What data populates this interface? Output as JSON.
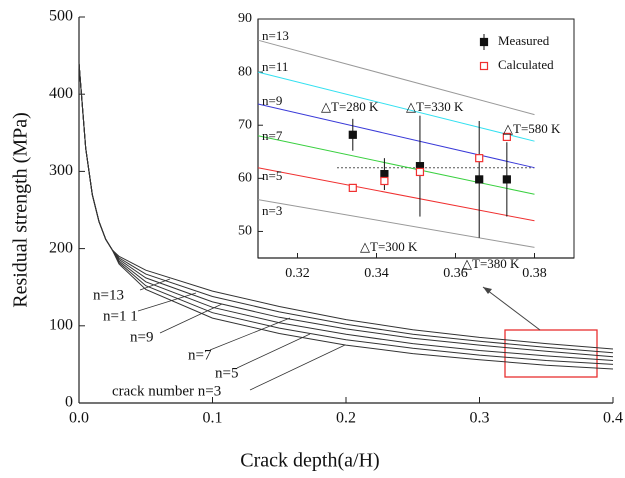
{
  "chart_data": [
    {
      "type": "line",
      "x_label": "Crack depth(a/H)",
      "y_label": "Residual strength (MPa)",
      "x": [
        0,
        0.005,
        0.01,
        0.015,
        0.02,
        0.025,
        0.03,
        0.05,
        0.1,
        0.15,
        0.2,
        0.25,
        0.3,
        0.35,
        0.4
      ],
      "series": [
        {
          "color": "#333333",
          "values": [
            440,
            330,
            270,
            235,
            212,
            198,
            190,
            172,
            145,
            125,
            108,
            95,
            85,
            77,
            70
          ]
        },
        {
          "color": "#333333",
          "values": [
            440,
            330,
            270,
            235,
            212,
            198,
            188,
            167,
            138,
            118,
            102,
            89,
            80,
            72,
            65
          ]
        },
        {
          "color": "#333333",
          "values": [
            440,
            330,
            270,
            235,
            212,
            198,
            186,
            162,
            131,
            111,
            96,
            84,
            75,
            67,
            60
          ]
        },
        {
          "color": "#333333",
          "values": [
            440,
            330,
            270,
            235,
            212,
            198,
            184,
            157,
            124,
            104,
            89,
            77,
            68,
            61,
            55
          ]
        },
        {
          "color": "#333333",
          "values": [
            440,
            330,
            270,
            235,
            212,
            198,
            182,
            152,
            117,
            97,
            82,
            71,
            62,
            55,
            50
          ]
        },
        {
          "color": "#333333",
          "values": [
            440,
            330,
            270,
            235,
            212,
            198,
            180,
            147,
            110,
            90,
            75,
            64,
            56,
            49,
            44
          ]
        }
      ],
      "annotations": [
        "n=13",
        "n=1 1",
        "n=9",
        "n=7",
        "n=5",
        "crack number n=3"
      ],
      "xlim": [
        0,
        0.4
      ],
      "xticks": [
        {
          "value": 0,
          "label": "0.0"
        },
        0.1,
        0.2,
        0.3,
        0.4
      ],
      "ylim": [
        0,
        500
      ],
      "yticks": [
        0,
        100,
        200,
        300,
        400,
        500
      ]
    },
    {
      "type": "line",
      "series": [
        {
          "color": "#999999",
          "x": [
            0.31,
            0.38
          ],
          "values": [
            86,
            72
          ]
        },
        {
          "color": "#33e0f0",
          "x": [
            0.31,
            0.38
          ],
          "values": [
            80,
            67
          ]
        },
        {
          "color": "#3a3ad8",
          "x": [
            0.31,
            0.38
          ],
          "values": [
            74,
            62
          ]
        },
        {
          "color": "#3ad040",
          "x": [
            0.31,
            0.38
          ],
          "values": [
            68,
            57
          ]
        },
        {
          "color": "#f03030",
          "x": [
            0.31,
            0.38
          ],
          "values": [
            62,
            52
          ]
        },
        {
          "color": "#999999",
          "x": [
            0.31,
            0.38
          ],
          "values": [
            56,
            47
          ]
        },
        {
          "name": "Measured",
          "type": "scatter",
          "marker": "filled",
          "color": "#111111",
          "x": [
            0.334,
            0.342,
            0.351,
            0.366,
            0.373
          ],
          "values": [
            68.2,
            60.8,
            62.3,
            59.8,
            59.8
          ],
          "errors": [
            3,
            3,
            9.5,
            11,
            7
          ]
        },
        {
          "name": "Calculated",
          "type": "scatter",
          "marker": "open",
          "color": "#f03030",
          "x": [
            0.334,
            0.342,
            0.351,
            0.366,
            0.373
          ],
          "values": [
            58.2,
            59.5,
            61.2,
            63.8,
            67.8
          ]
        }
      ],
      "reference_line": 62,
      "annotations": [
        "n=13",
        "n=11",
        "n=9",
        "n=7",
        "n=5",
        "n=3",
        "△T=280 K",
        "△T=330 K",
        "△T=580 K",
        "△T=300 K",
        "△T=380 K"
      ],
      "xlim": [
        0.31,
        0.39
      ],
      "xticks": [
        0.32,
        0.34,
        0.36,
        0.38
      ],
      "ylim": [
        45,
        90
      ],
      "yticks": [
        50,
        60,
        70,
        80,
        90
      ]
    }
  ]
}
